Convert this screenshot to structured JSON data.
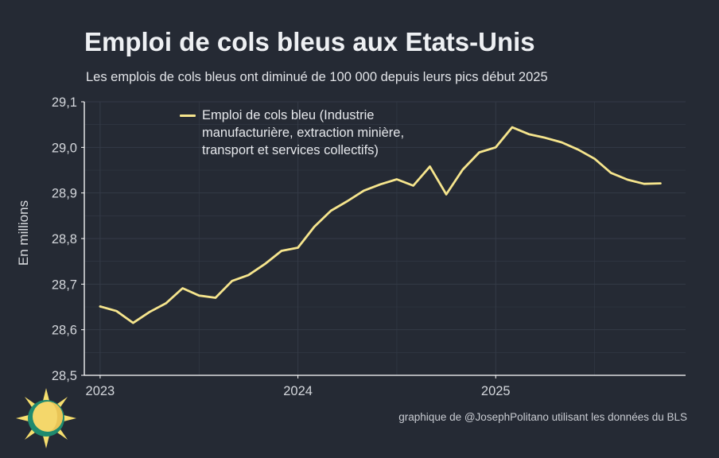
{
  "title": "Emploi de cols bleus aux Etats-Unis",
  "subtitle": "Les emplois de cols bleus ont diminué de 100 000 depuis leurs pics début 2025",
  "credit": "graphique de @JosephPolitano utilisant les données du BLS",
  "colors": {
    "background": "#252a34",
    "line": "#f6e58d",
    "grid": "#353b47",
    "axis": "#ffffff",
    "text": "#e6e8ec"
  },
  "chart_data": {
    "type": "line",
    "title": "Emploi de cols bleus aux Etats-Unis",
    "xlabel": "",
    "ylabel": "En millions",
    "ylim": [
      28.5,
      29.1
    ],
    "yticks": [
      28.5,
      28.6,
      28.7,
      28.8,
      28.9,
      29.0,
      29.1
    ],
    "ytick_labels": [
      "28,5",
      "28,6",
      "28,7",
      "28,8",
      "28,9",
      "29,0",
      "29,1"
    ],
    "xlim": [
      2022.92,
      2025.96
    ],
    "xticks": [
      2023,
      2024,
      2025
    ],
    "xtick_labels": [
      "2023",
      "2024",
      "2025"
    ],
    "legend_position": "top-left",
    "series": [
      {
        "name": "Emploi de cols bleu (Industrie manufacturière, extraction minière, transport et services collectifs)",
        "color": "#f6e58d",
        "x": [
          2023.0,
          2023.083,
          2023.167,
          2023.25,
          2023.333,
          2023.417,
          2023.5,
          2023.583,
          2023.667,
          2023.75,
          2023.833,
          2023.917,
          2024.0,
          2024.083,
          2024.167,
          2024.25,
          2024.333,
          2024.417,
          2024.5,
          2024.583,
          2024.667,
          2024.75,
          2024.833,
          2024.917,
          2025.0,
          2025.083,
          2025.167,
          2025.25,
          2025.333,
          2025.417,
          2025.5,
          2025.583,
          2025.667,
          2025.75,
          2025.833
        ],
        "values": [
          28.651,
          28.641,
          28.615,
          28.639,
          28.658,
          28.691,
          28.675,
          28.67,
          28.707,
          28.72,
          28.744,
          28.773,
          28.78,
          28.826,
          28.861,
          28.882,
          28.905,
          28.919,
          28.93,
          28.916,
          28.958,
          28.897,
          28.951,
          28.989,
          29.0,
          29.044,
          29.029,
          29.021,
          29.011,
          28.995,
          28.975,
          28.944,
          28.929,
          28.92,
          28.921
        ]
      }
    ]
  }
}
